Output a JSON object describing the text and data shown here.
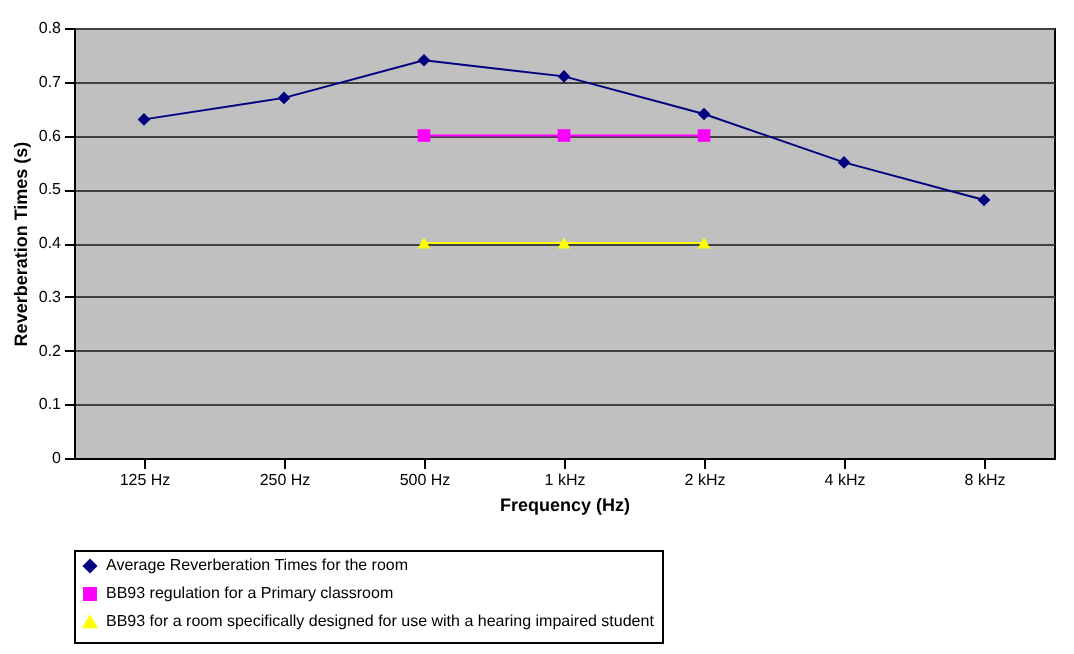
{
  "chart_data": {
    "type": "line",
    "xlabel": "Frequency (Hz)",
    "ylabel": "Reverberation Times (s)",
    "categories": [
      "125 Hz",
      "250 Hz",
      "500 Hz",
      "1 kHz",
      "2 kHz",
      "4 kHz",
      "8 kHz"
    ],
    "series": [
      {
        "name": "Average Reverberation Times for the room",
        "color": "#000080",
        "marker": "diamond",
        "values": [
          0.63,
          0.67,
          0.74,
          0.71,
          0.64,
          0.55,
          0.48
        ]
      },
      {
        "name": "BB93 regulation for a Primary classroom",
        "color": "#ff00ff",
        "marker": "square",
        "values": [
          null,
          null,
          0.6,
          0.6,
          0.6,
          null,
          null
        ]
      },
      {
        "name": "BB93 for a room specifically designed for use with a hearing impaired student",
        "color": "#ffff00",
        "marker": "triangle",
        "values": [
          null,
          null,
          0.4,
          0.4,
          0.4,
          null,
          null
        ]
      }
    ],
    "ylim": [
      0,
      0.8
    ],
    "yticks": [
      0,
      0.1,
      0.2,
      0.3,
      0.4,
      0.5,
      0.6,
      0.7,
      0.8
    ],
    "grid": "y",
    "legend": "bottom"
  }
}
